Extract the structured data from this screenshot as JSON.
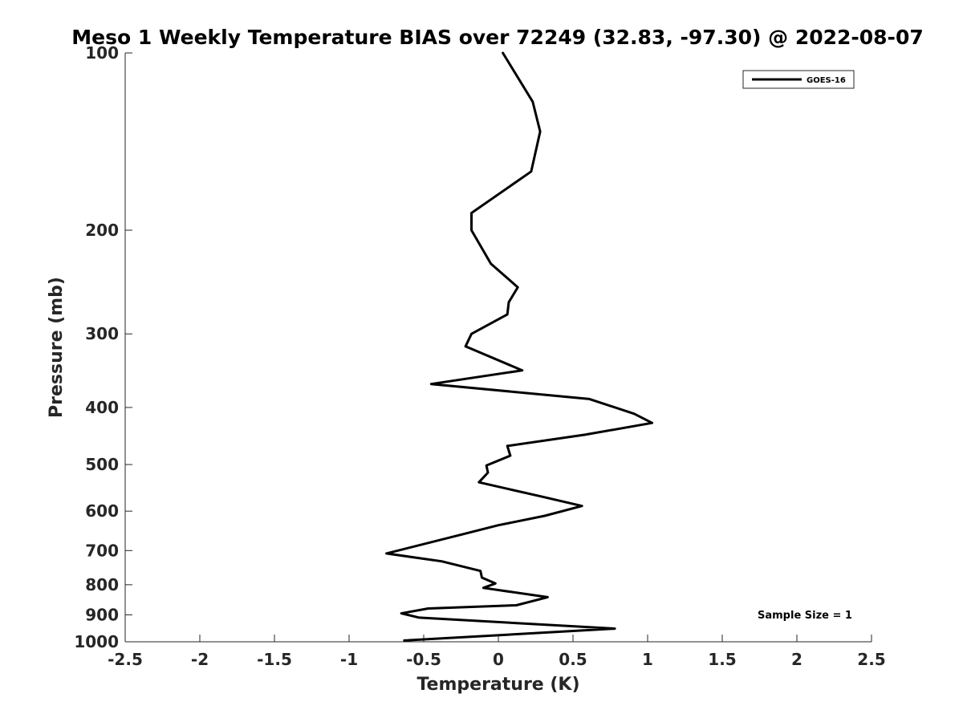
{
  "chart_data": {
    "type": "line",
    "title": "Meso 1 Weekly Temperature BIAS over 72249 (32.83, -97.30) @ 2022-08-07",
    "xlabel": "Temperature (K)",
    "ylabel": "Pressure (mb)",
    "xlim": [
      -2.5,
      2.5
    ],
    "ylim": [
      100,
      1000
    ],
    "y_scale": "log",
    "y_reversed": true,
    "x_ticks": [
      -2.5,
      -2,
      -1.5,
      -1,
      -0.5,
      0,
      0.5,
      1,
      1.5,
      2,
      2.5
    ],
    "x_tick_labels": [
      "-2.5",
      "-2",
      "-1.5",
      "-1",
      "-0.5",
      "0",
      "0.5",
      "1",
      "1.5",
      "2",
      "2.5"
    ],
    "y_ticks": [
      100,
      200,
      300,
      400,
      500,
      600,
      700,
      800,
      900,
      1000
    ],
    "y_tick_labels": [
      "100",
      "200",
      "300",
      "400",
      "500",
      "600",
      "700",
      "800",
      "900",
      "1000"
    ],
    "grid": false,
    "legend_position": "top-right",
    "annotation": "Sample Size = 1",
    "series": [
      {
        "name": "GOES-16",
        "color": "#000000",
        "x": [
          0.03,
          0.23,
          0.28,
          0.22,
          -0.18,
          -0.18,
          -0.05,
          0.13,
          0.07,
          0.06,
          -0.18,
          -0.22,
          0.16,
          -0.45,
          0.61,
          0.91,
          1.03,
          0.58,
          0.06,
          0.08,
          -0.08,
          -0.07,
          -0.13,
          0.28,
          0.56,
          0.31,
          0.0,
          -0.23,
          -0.75,
          -0.38,
          -0.12,
          -0.11,
          -0.02,
          -0.1,
          0.33,
          0.12,
          -0.47,
          -0.65,
          -0.53,
          0.78,
          -0.63
        ],
        "y": [
          100,
          121,
          136,
          159,
          187,
          200,
          228,
          250,
          265,
          278,
          300,
          315,
          346,
          365,
          387,
          410,
          425,
          445,
          465,
          483,
          502,
          516,
          536,
          566,
          588,
          611,
          634,
          656,
          708,
          730,
          758,
          778,
          796,
          810,
          840,
          867,
          878,
          895,
          910,
          950,
          995
        ]
      }
    ]
  }
}
